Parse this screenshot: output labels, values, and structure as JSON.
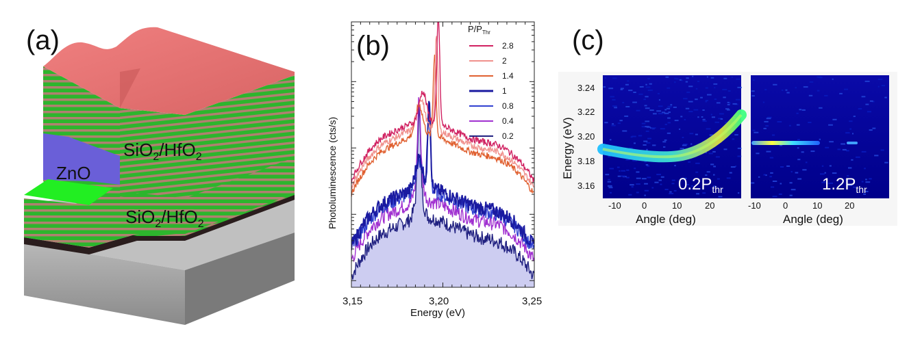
{
  "panel_a": {
    "letter": "(a)",
    "label_zno": "ZnO",
    "label_upper_dbr": "SiO",
    "label_upper_dbr_sub": "2",
    "label_upper_dbr_tail": "/HfO",
    "label_upper_dbr_sub2": "2",
    "label_lower_dbr": "SiO",
    "label_lower_dbr_sub": "2",
    "label_lower_dbr_tail": "/HfO",
    "label_lower_dbr_sub2": "2",
    "colors": {
      "top": "#e87070",
      "green": "#2db52d",
      "stripe": "#b08070",
      "zno": "#6a5fd8",
      "bright_green": "#22ee22",
      "substrate": "#a0a0a0"
    }
  },
  "panel_b": {
    "letter": "(b)",
    "legend_title": "P/P",
    "legend_title_sub": "Thr",
    "xlabel": "Energy (eV)",
    "ylabel": "Photoluminescence (cts/s)",
    "xticks": [
      "3,15",
      "3,20",
      "3,25"
    ],
    "chart_data": {
      "type": "line",
      "x_range": [
        3.15,
        3.25
      ],
      "y_scale": "log",
      "series": [
        {
          "name": "2.8",
          "color": "#d02060",
          "peak_center": 3.1975,
          "peak_height": 3.2,
          "base": 1.55,
          "shoulder": 3.189
        },
        {
          "name": "2",
          "color": "#f0908c",
          "peak_center": 3.1965,
          "peak_height": 2.9,
          "base": 1.45,
          "shoulder": 3.188
        },
        {
          "name": "1.4",
          "color": "#e06030",
          "peak_center": 3.1955,
          "peak_height": 2.6,
          "base": 1.35,
          "shoulder": 3.187
        },
        {
          "name": "1",
          "color": "#1a1aa0",
          "peak_center": 3.1925,
          "peak_height": 1.95,
          "base": 0.55,
          "shoulder": 3.187
        },
        {
          "name": "0.8",
          "color": "#3040d0",
          "peak_center": 3.1925,
          "peak_height": 1.6,
          "base": 0.5,
          "shoulder": 3.187
        },
        {
          "name": "0.4",
          "color": "#a030d0",
          "peak_center": 3.187,
          "peak_height": 1.45,
          "base": 0.35,
          "shoulder": 3.187
        },
        {
          "name": "0.2",
          "color": "#202080",
          "peak_center": 3.187,
          "peak_height": 1.3,
          "base": 0.1,
          "shoulder": 3.187
        }
      ]
    }
  },
  "panel_c": {
    "letter": "(c)",
    "ylabel": "Energy (eV)",
    "yticks": [
      "3.24",
      "3.22",
      "3.20",
      "3.18",
      "3.16"
    ],
    "left": {
      "xlabel": "Angle  (deg)",
      "xticks": [
        "-10",
        "0",
        "10",
        "20"
      ],
      "label": "0.2P",
      "label_sub": "thr"
    },
    "right": {
      "xlabel": "Angle (deg)",
      "xticks": [
        "-10",
        "0",
        "10",
        "20"
      ],
      "label": "1.2P",
      "label_sub": "thr"
    }
  }
}
